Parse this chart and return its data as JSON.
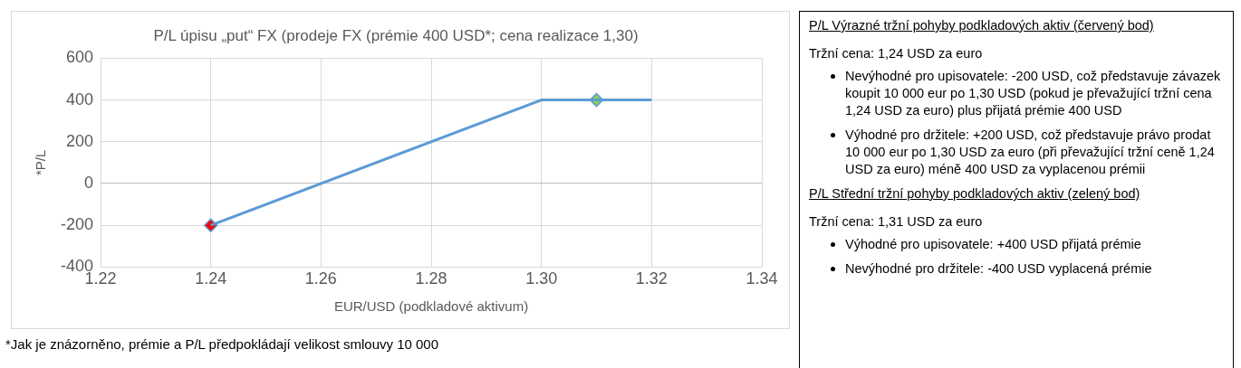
{
  "chart_data": [
    {
      "type": "line",
      "title": "P/L úpisu „put“ FX (prodeje FX (prémie 400 USD*; cena realizace 1,30)",
      "xlabel": "EUR/USD (podkladové aktivum)",
      "ylabel": "*P/L",
      "series": [
        {
          "type": "line",
          "color": "#5b9bd5",
          "x": [
            1.24,
            1.3,
            1.32
          ],
          "values": [
            -200,
            400,
            400
          ],
          "marker": "none"
        },
        {
          "type": "scatter",
          "color": "#ff0000",
          "x": [
            1.24
          ],
          "values": [
            -200
          ],
          "marker": "diamond"
        },
        {
          "type": "scatter",
          "color": "#92d050",
          "x": [
            1.31
          ],
          "values": [
            400
          ],
          "marker": "diamond"
        }
      ],
      "xlim": [
        1.22,
        1.34
      ],
      "xticks": [
        {
          "value": 1.22,
          "label": "1.22"
        },
        {
          "value": 1.24,
          "label": "1.24"
        },
        {
          "value": 1.26,
          "label": "1.26"
        },
        {
          "value": 1.28,
          "label": "1.28"
        },
        {
          "value": 1.3,
          "label": "1.30"
        },
        {
          "value": 1.32,
          "label": "1.32"
        },
        {
          "value": 1.34,
          "label": "1.34"
        }
      ],
      "ylim": [
        -400,
        600
      ],
      "yticks": [
        -400,
        -200,
        0,
        200,
        400,
        600
      ],
      "grid": true,
      "legend": false,
      "annotations": [
        "*Jak je znázorněno, prémie a P/L předpokládají velikost smlouvy 10 000"
      ]
    },
    {
      "type": "other",
      "annotations": [
        "P/L Výrazné tržní pohyby podkladových aktiv (červený bod)",
        "Tržní cena: 1,24 USD za euro",
        "Nevýhodné pro upisovatele: -200 USD, což představuje závazek koupit 10 000 eur po 1,30 USD (pokud je převažující tržní cena 1,24 USD za euro) plus přijatá prémie 400 USD",
        "Výhodné pro držitele: +200 USD, což představuje právo prodat 10 000 eur po 1,30 USD za euro (při převažující tržní ceně 1,24 USD za euro) méně 400 USD za vyplacenou prémii",
        "P/L Střední tržní pohyby podkladových aktiv (zelený bod)",
        "Tržní cena: 1,31 USD za euro",
        "Výhodné pro upisovatele: +400 USD přijatá prémie",
        "Nevýhodné pro držitele: -400 USD vyplacená prémie"
      ]
    }
  ]
}
